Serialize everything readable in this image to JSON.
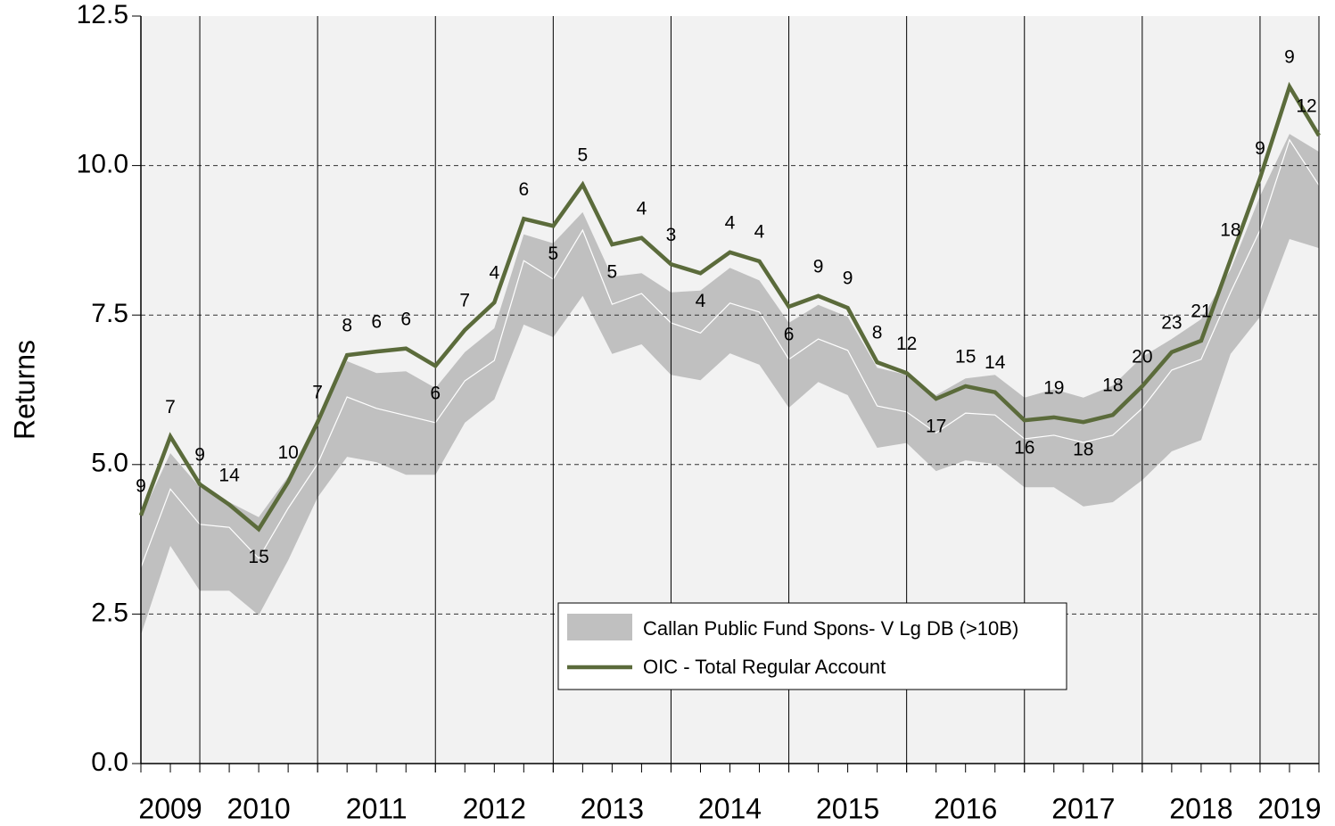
{
  "chart_data": {
    "type": "line",
    "y_label": "Returns",
    "categories": [
      null,
      "2009",
      null,
      null,
      "2010",
      null,
      null,
      null,
      "2011",
      null,
      null,
      null,
      "2012",
      null,
      null,
      null,
      "2013",
      null,
      null,
      null,
      "2014",
      null,
      null,
      null,
      "2015",
      null,
      null,
      null,
      "2016",
      null,
      null,
      null,
      "2017",
      null,
      null,
      null,
      "2018",
      null,
      null,
      "2019",
      null
    ],
    "ylim": [
      0,
      12.5
    ],
    "yticks": [
      {
        "value": 0,
        "label": "0.0"
      },
      2.5,
      {
        "value": 5,
        "label": "5.0"
      },
      7.5,
      {
        "value": 10,
        "label": "10.0"
      },
      12.5
    ],
    "grid": true,
    "legend": "bottom-center",
    "series": [
      {
        "name": "Callan Public Fund Spons- V Lg DB (>10B)",
        "color": "#c0c0c0",
        "high": [
          4.12,
          5.19,
          4.62,
          4.37,
          4.12,
          4.8,
          5.79,
          6.73,
          6.53,
          6.56,
          6.28,
          6.88,
          7.28,
          8.85,
          8.7,
          9.22,
          8.14,
          8.2,
          7.88,
          7.91,
          8.29,
          8.08,
          7.37,
          7.67,
          7.47,
          6.62,
          6.5,
          6.16,
          6.44,
          6.5,
          6.12,
          6.26,
          6.12,
          6.32,
          6.8,
          7.1,
          7.43,
          8.26,
          9.49,
          10.53,
          10.23
        ],
        "median": [
          3.28,
          4.59,
          4.0,
          3.95,
          3.43,
          4.27,
          5.01,
          6.13,
          5.94,
          5.82,
          5.7,
          6.4,
          6.74,
          8.41,
          8.1,
          8.92,
          7.68,
          7.86,
          7.37,
          7.2,
          7.7,
          7.55,
          6.76,
          7.1,
          6.91,
          5.98,
          5.88,
          5.53,
          5.86,
          5.83,
          5.43,
          5.49,
          5.37,
          5.49,
          5.94,
          6.58,
          6.76,
          7.88,
          8.92,
          10.43,
          9.67
        ],
        "low": [
          2.15,
          3.64,
          2.89,
          2.89,
          2.48,
          3.4,
          4.45,
          5.13,
          5.04,
          4.83,
          4.83,
          5.7,
          6.09,
          7.34,
          7.13,
          7.82,
          6.85,
          7.01,
          6.5,
          6.41,
          6.86,
          6.67,
          5.95,
          6.38,
          6.16,
          5.28,
          5.36,
          4.89,
          5.07,
          5.01,
          4.62,
          4.62,
          4.3,
          4.37,
          4.74,
          5.22,
          5.41,
          6.85,
          7.47,
          8.77,
          8.62
        ]
      },
      {
        "name": "OIC - Total Regular Account",
        "color": "#5b6b3b",
        "values": [
          4.15,
          5.47,
          4.67,
          4.33,
          3.92,
          4.71,
          5.71,
          6.83,
          6.89,
          6.94,
          6.65,
          7.25,
          7.71,
          9.11,
          8.99,
          9.68,
          8.68,
          8.79,
          8.35,
          8.2,
          8.55,
          8.4,
          7.64,
          7.82,
          7.62,
          6.71,
          6.53,
          6.1,
          6.31,
          6.21,
          5.74,
          5.79,
          5.71,
          5.83,
          6.31,
          6.88,
          7.07,
          8.43,
          9.79,
          11.32,
          10.5
        ],
        "ranks": [
          9,
          7,
          9,
          14,
          15,
          10,
          7,
          8,
          6,
          6,
          6,
          7,
          4,
          6,
          5,
          5,
          5,
          4,
          3,
          4,
          4,
          4,
          6,
          9,
          9,
          8,
          12,
          17,
          15,
          14,
          16,
          19,
          18,
          18,
          20,
          23,
          21,
          18,
          9,
          9,
          12
        ]
      }
    ]
  }
}
